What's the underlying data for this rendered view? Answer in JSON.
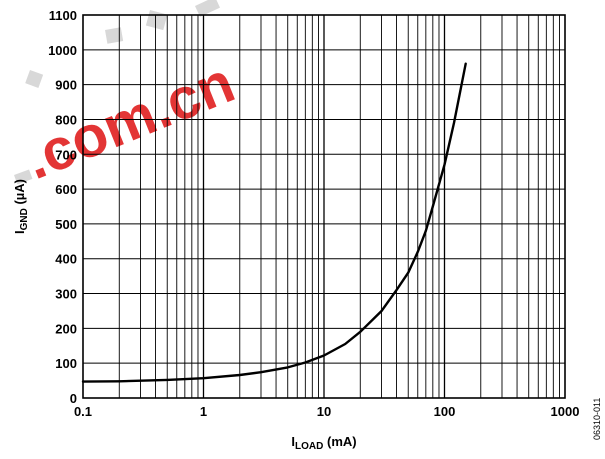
{
  "chart_data": {
    "type": "line",
    "xlabel": {
      "main": "I",
      "sub": "LOAD",
      "unit": " (mA)"
    },
    "ylabel": {
      "main": "I",
      "sub": "GND",
      "unit": " (µA)"
    },
    "xscale": "log",
    "xlim": [
      0.1,
      1000
    ],
    "ylim": [
      0,
      1100
    ],
    "grid": true,
    "x_tick_labels": [
      "0.1",
      "1",
      "10",
      "100",
      "1000"
    ],
    "y_tick_labels": [
      "0",
      "100",
      "200",
      "300",
      "400",
      "500",
      "600",
      "700",
      "800",
      "900",
      "1000",
      "1100"
    ],
    "series": [
      {
        "color": "#000000",
        "x": [
          0.1,
          0.2,
          0.5,
          1,
          2,
          3,
          5,
          7,
          10,
          15,
          20,
          30,
          40,
          50,
          60,
          70,
          80,
          100,
          120,
          150
        ],
        "y": [
          47,
          48,
          52,
          57,
          66,
          74,
          88,
          102,
          122,
          155,
          190,
          250,
          310,
          360,
          420,
          480,
          550,
          670,
          790,
          960
        ]
      }
    ]
  },
  "figure_code": "06310-011",
  "watermark": ".com.cn"
}
